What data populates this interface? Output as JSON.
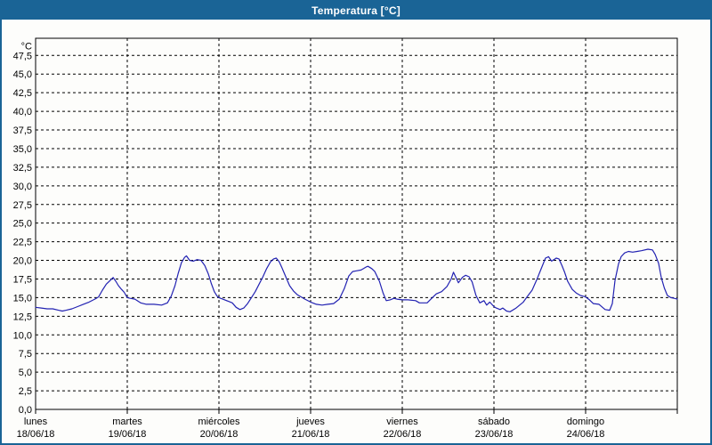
{
  "window": {
    "title": "Temperatura [°C]"
  },
  "chart_data": {
    "type": "line",
    "title": "Temperatura [°C]",
    "xlabel": "",
    "ylabel": "°C",
    "ylim": [
      0,
      47.5
    ],
    "y_tick_step": 2.5,
    "y_unit_label": "°C",
    "y_tick_labels": [
      "47,5",
      "45,0",
      "42,5",
      "40,0",
      "37,5",
      "35,0",
      "32,5",
      "30,0",
      "27,5",
      "25,0",
      "22,5",
      "20,0",
      "17,5",
      "15,0",
      "12,5",
      "10,0",
      "7,5",
      "5,0",
      "2,5",
      "0,0"
    ],
    "x_hours_range": [
      0,
      168
    ],
    "x_days": [
      {
        "name": "lunes",
        "date": "18/06/18"
      },
      {
        "name": "martes",
        "date": "19/06/18"
      },
      {
        "name": "miércoles",
        "date": "20/06/18"
      },
      {
        "name": "jueves",
        "date": "21/06/18"
      },
      {
        "name": "viernes",
        "date": "22/06/18"
      },
      {
        "name": "sábado",
        "date": "23/06/18"
      },
      {
        "name": "domingo",
        "date": "24/06/18"
      }
    ],
    "grid": "dashed",
    "legend": "none",
    "frame_color": "#000000",
    "background_color": "#ffffff",
    "titlebar_color": "#1a6496",
    "series": [
      {
        "name": "Temperatura",
        "color": "#2222b2",
        "points_hour_degC": [
          [
            0,
            13.7
          ],
          [
            1.5,
            13.6
          ],
          [
            3,
            13.5
          ],
          [
            4.5,
            13.5
          ],
          [
            6,
            13.3
          ],
          [
            7,
            13.2
          ],
          [
            8,
            13.3
          ],
          [
            9.5,
            13.5
          ],
          [
            11,
            13.8
          ],
          [
            12.5,
            14.1
          ],
          [
            14,
            14.4
          ],
          [
            15.5,
            14.8
          ],
          [
            16.5,
            15.1
          ],
          [
            17.5,
            16.0
          ],
          [
            18.5,
            16.8
          ],
          [
            19.5,
            17.3
          ],
          [
            20.3,
            17.7
          ],
          [
            21,
            17.2
          ],
          [
            21.7,
            16.6
          ],
          [
            22.5,
            16.1
          ],
          [
            23.2,
            15.7
          ],
          [
            24,
            15.0
          ],
          [
            24.8,
            14.9
          ],
          [
            26,
            14.8
          ],
          [
            27.5,
            14.3
          ],
          [
            29,
            14.1
          ],
          [
            31,
            14.1
          ],
          [
            33,
            14.0
          ],
          [
            34.5,
            14.3
          ],
          [
            35.5,
            15.2
          ],
          [
            36.5,
            16.6
          ],
          [
            37.3,
            18.2
          ],
          [
            38.2,
            19.7
          ],
          [
            39,
            20.4
          ],
          [
            39.5,
            20.6
          ],
          [
            40.3,
            20.0
          ],
          [
            41.3,
            19.9
          ],
          [
            42.3,
            20.1
          ],
          [
            43.3,
            20.0
          ],
          [
            44.3,
            19.3
          ],
          [
            45.2,
            18.2
          ],
          [
            46,
            16.9
          ],
          [
            46.8,
            15.8
          ],
          [
            47.5,
            15.2
          ],
          [
            48,
            15.0
          ],
          [
            49,
            14.8
          ],
          [
            50.5,
            14.5
          ],
          [
            51.5,
            14.3
          ],
          [
            52.5,
            13.7
          ],
          [
            53.5,
            13.4
          ],
          [
            54.5,
            13.6
          ],
          [
            55.5,
            14.2
          ],
          [
            56.5,
            15.0
          ],
          [
            57.5,
            15.8
          ],
          [
            58.5,
            16.8
          ],
          [
            59.5,
            17.8
          ],
          [
            60.5,
            18.9
          ],
          [
            61.5,
            19.8
          ],
          [
            62.3,
            20.2
          ],
          [
            63,
            20.3
          ],
          [
            63.8,
            19.8
          ],
          [
            64.5,
            19.0
          ],
          [
            65.5,
            17.8
          ],
          [
            66.5,
            16.6
          ],
          [
            67.5,
            15.9
          ],
          [
            68.5,
            15.4
          ],
          [
            69.5,
            15.1
          ],
          [
            70.5,
            14.8
          ],
          [
            72,
            14.4
          ],
          [
            73.5,
            14.1
          ],
          [
            75,
            14.0
          ],
          [
            76.5,
            14.1
          ],
          [
            78,
            14.2
          ],
          [
            79.5,
            14.8
          ],
          [
            80.8,
            16.2
          ],
          [
            82,
            17.9
          ],
          [
            83,
            18.5
          ],
          [
            84,
            18.6
          ],
          [
            85.2,
            18.7
          ],
          [
            86.5,
            19.1
          ],
          [
            87,
            19.2
          ],
          [
            88,
            18.9
          ],
          [
            88.8,
            18.5
          ],
          [
            90,
            17.2
          ],
          [
            91,
            15.6
          ],
          [
            91.8,
            14.6
          ],
          [
            92.8,
            14.7
          ],
          [
            93.8,
            14.9
          ],
          [
            94.6,
            14.8
          ],
          [
            96,
            14.7
          ],
          [
            97.5,
            14.7
          ],
          [
            99.5,
            14.6
          ],
          [
            100.5,
            14.3
          ],
          [
            102.5,
            14.3
          ],
          [
            103.7,
            14.9
          ],
          [
            104.9,
            15.5
          ],
          [
            106.3,
            15.8
          ],
          [
            107.7,
            16.5
          ],
          [
            108.8,
            17.5
          ],
          [
            109.4,
            18.4
          ],
          [
            110.7,
            17.0
          ],
          [
            111.7,
            17.7
          ],
          [
            112.6,
            18.0
          ],
          [
            113.5,
            17.8
          ],
          [
            114.3,
            17.1
          ],
          [
            115.3,
            15.3
          ],
          [
            116.3,
            14.3
          ],
          [
            117.4,
            14.6
          ],
          [
            118.1,
            14.0
          ],
          [
            118.9,
            14.4
          ],
          [
            120,
            13.8
          ],
          [
            120.6,
            13.6
          ],
          [
            121.6,
            13.4
          ],
          [
            122.3,
            13.6
          ],
          [
            123.3,
            13.2
          ],
          [
            124.2,
            13.1
          ],
          [
            125.8,
            13.6
          ],
          [
            127.7,
            14.4
          ],
          [
            128.8,
            15.2
          ],
          [
            130,
            16.0
          ],
          [
            131.2,
            17.4
          ],
          [
            132.3,
            18.8
          ],
          [
            133.5,
            20.3
          ],
          [
            134.3,
            20.5
          ],
          [
            135.1,
            19.9
          ],
          [
            136.3,
            20.3
          ],
          [
            137,
            20.2
          ],
          [
            137.8,
            19.3
          ],
          [
            138.5,
            18.4
          ],
          [
            139.3,
            17.2
          ],
          [
            140.5,
            16.1
          ],
          [
            141.6,
            15.6
          ],
          [
            142.6,
            15.3
          ],
          [
            144,
            15.1
          ],
          [
            145,
            14.7
          ],
          [
            146,
            14.2
          ],
          [
            147.5,
            14.1
          ],
          [
            149.1,
            13.4
          ],
          [
            150.3,
            13.3
          ],
          [
            151,
            14.2
          ],
          [
            151.7,
            17.3
          ],
          [
            152.6,
            19.5
          ],
          [
            153.3,
            20.5
          ],
          [
            154.2,
            21.0
          ],
          [
            155.2,
            21.2
          ],
          [
            156.3,
            21.1
          ],
          [
            157.5,
            21.2
          ],
          [
            158.6,
            21.3
          ],
          [
            160.3,
            21.5
          ],
          [
            161.5,
            21.4
          ],
          [
            162.2,
            20.8
          ],
          [
            163.1,
            19.6
          ],
          [
            163.8,
            17.7
          ],
          [
            164.6,
            16.3
          ],
          [
            165.4,
            15.3
          ],
          [
            166.3,
            15.0
          ],
          [
            167.2,
            14.9
          ],
          [
            168,
            14.8
          ]
        ]
      }
    ]
  }
}
